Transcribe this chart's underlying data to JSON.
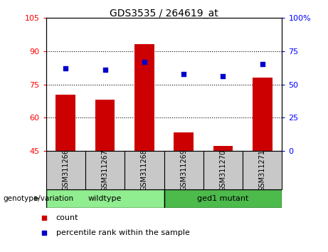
{
  "title": "GDS3535 / 264619_at",
  "samples": [
    "GSM311266",
    "GSM311267",
    "GSM311268",
    "GSM311269",
    "GSM311270",
    "GSM311271"
  ],
  "bar_values": [
    70.5,
    68.0,
    93.0,
    53.5,
    47.5,
    78.0
  ],
  "dot_values": [
    62,
    61,
    67,
    58,
    56,
    65
  ],
  "bar_color": "#cc0000",
  "dot_color": "#0000cc",
  "left_ylim": [
    45,
    105
  ],
  "left_yticks": [
    45,
    60,
    75,
    90,
    105
  ],
  "right_ylim": [
    0,
    100
  ],
  "right_yticks": [
    0,
    25,
    50,
    75,
    100
  ],
  "wildtype_color": "#90ee90",
  "mutant_color": "#4cbb4c",
  "gray_color": "#c8c8c8",
  "bar_bottom": 45,
  "grid_dotted_at": [
    60,
    75,
    90
  ]
}
